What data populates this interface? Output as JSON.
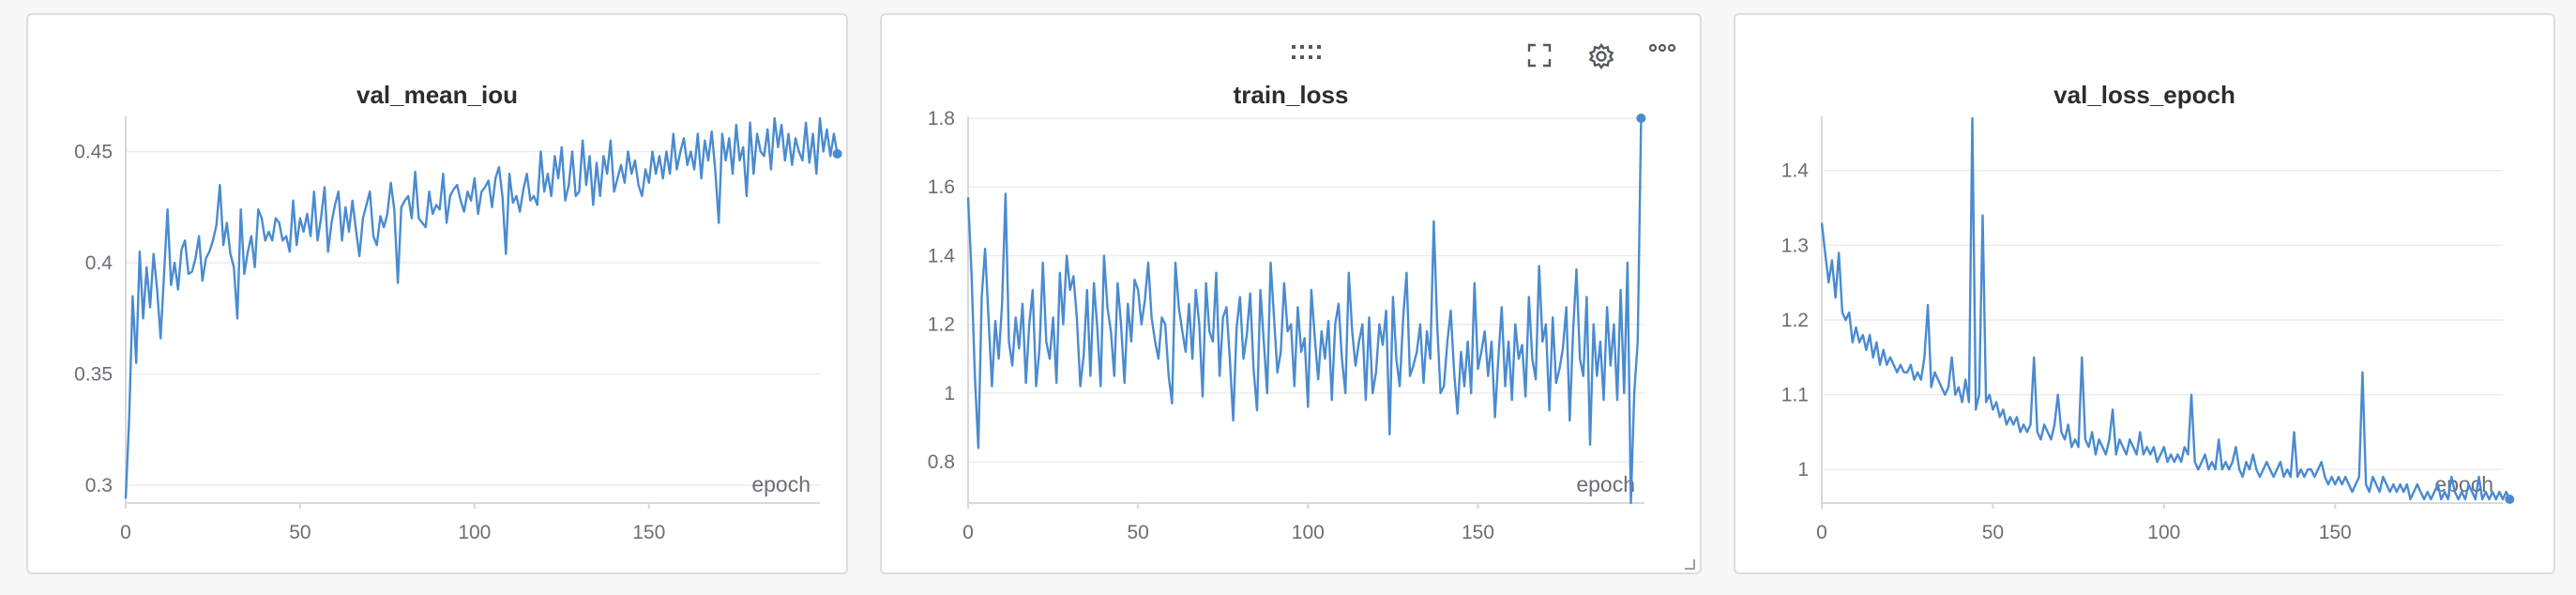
{
  "panels": [
    {
      "title": "val_mean_iou",
      "toolbar": false
    },
    {
      "title": "train_loss",
      "toolbar": true
    },
    {
      "title": "val_loss_epoch",
      "toolbar": false
    }
  ],
  "toolbar_icons": [
    "drag-handle-icon",
    "fullscreen-icon",
    "gear-icon",
    "more-icon"
  ],
  "colors": {
    "line": "#4a8bd0",
    "grid": "#ececee",
    "axis": "#d8d9dc"
  },
  "chart_data": [
    {
      "type": "line",
      "title": "val_mean_iou",
      "xlabel": "epoch",
      "ylabel": "",
      "xlim": [
        0,
        199
      ],
      "ylim": [
        0.292,
        0.465
      ],
      "xticks": [
        0,
        50,
        100,
        150
      ],
      "yticks": [
        0.3,
        0.35,
        0.4,
        0.45
      ],
      "ytick_labels": [
        "0.3",
        "0.35",
        "0.4",
        "0.45"
      ],
      "grid": true,
      "series": [
        {
          "values": [
            0.294,
            0.33,
            0.385,
            0.355,
            0.405,
            0.375,
            0.398,
            0.38,
            0.404,
            0.388,
            0.366,
            0.395,
            0.424,
            0.39,
            0.4,
            0.388,
            0.406,
            0.41,
            0.395,
            0.396,
            0.402,
            0.412,
            0.392,
            0.402,
            0.405,
            0.41,
            0.417,
            0.435,
            0.408,
            0.418,
            0.404,
            0.398,
            0.375,
            0.424,
            0.395,
            0.405,
            0.412,
            0.398,
            0.424,
            0.42,
            0.41,
            0.414,
            0.41,
            0.42,
            0.418,
            0.41,
            0.412,
            0.405,
            0.428,
            0.408,
            0.42,
            0.414,
            0.422,
            0.412,
            0.432,
            0.41,
            0.42,
            0.434,
            0.405,
            0.418,
            0.426,
            0.432,
            0.41,
            0.425,
            0.414,
            0.428,
            0.415,
            0.403,
            0.42,
            0.426,
            0.432,
            0.412,
            0.408,
            0.421,
            0.416,
            0.422,
            0.436,
            0.424,
            0.391,
            0.425,
            0.428,
            0.43,
            0.42,
            0.441,
            0.42,
            0.418,
            0.416,
            0.432,
            0.422,
            0.426,
            0.424,
            0.44,
            0.418,
            0.43,
            0.433,
            0.435,
            0.428,
            0.423,
            0.432,
            0.428,
            0.438,
            0.422,
            0.432,
            0.434,
            0.437,
            0.425,
            0.438,
            0.443,
            0.43,
            0.404,
            0.44,
            0.427,
            0.43,
            0.423,
            0.433,
            0.44,
            0.428,
            0.43,
            0.426,
            0.45,
            0.432,
            0.44,
            0.43,
            0.448,
            0.438,
            0.452,
            0.428,
            0.435,
            0.45,
            0.43,
            0.432,
            0.455,
            0.435,
            0.448,
            0.426,
            0.445,
            0.43,
            0.448,
            0.44,
            0.455,
            0.432,
            0.438,
            0.444,
            0.436,
            0.45,
            0.44,
            0.446,
            0.435,
            0.43,
            0.442,
            0.436,
            0.45,
            0.44,
            0.448,
            0.438,
            0.45,
            0.44,
            0.458,
            0.442,
            0.45,
            0.456,
            0.444,
            0.45,
            0.442,
            0.458,
            0.438,
            0.455,
            0.446,
            0.459,
            0.442,
            0.418,
            0.458,
            0.446,
            0.456,
            0.44,
            0.462,
            0.446,
            0.452,
            0.43,
            0.463,
            0.44,
            0.458,
            0.45,
            0.448,
            0.46,
            0.442,
            0.465,
            0.452,
            0.462,
            0.446,
            0.458,
            0.444,
            0.456,
            0.45,
            0.446,
            0.463,
            0.445,
            0.458,
            0.44,
            0.465,
            0.45,
            0.46,
            0.448,
            0.458,
            0.449
          ]
        }
      ]
    },
    {
      "type": "line",
      "title": "train_loss",
      "xlabel": "epoch",
      "ylabel": "",
      "xlim": [
        0,
        199
      ],
      "ylim": [
        0.68,
        1.8
      ],
      "xticks": [
        0,
        50,
        100,
        150
      ],
      "yticks": [
        0.8,
        1,
        1.2,
        1.4,
        1.6,
        1.8
      ],
      "ytick_labels": [
        "0.8",
        "1",
        "1.2",
        "1.4",
        "1.6",
        "1.8"
      ],
      "grid": true,
      "series": [
        {
          "values": [
            1.57,
            1.35,
            1.05,
            0.84,
            1.28,
            1.42,
            1.22,
            1.02,
            1.21,
            1.1,
            1.26,
            1.58,
            1.15,
            1.08,
            1.22,
            1.13,
            1.26,
            1.03,
            1.2,
            1.3,
            1.02,
            1.13,
            1.38,
            1.15,
            1.1,
            1.22,
            1.03,
            1.35,
            1.2,
            1.4,
            1.3,
            1.34,
            1.22,
            1.02,
            1.11,
            1.3,
            1.05,
            1.32,
            1.19,
            1.02,
            1.4,
            1.25,
            1.18,
            1.05,
            1.32,
            1.2,
            1.03,
            1.26,
            1.15,
            1.33,
            1.3,
            1.2,
            1.27,
            1.38,
            1.22,
            1.15,
            1.1,
            1.22,
            1.2,
            1.05,
            0.97,
            1.38,
            1.25,
            1.18,
            1.12,
            1.26,
            1.1,
            1.3,
            1.2,
            0.99,
            1.32,
            1.18,
            1.15,
            1.35,
            1.05,
            1.22,
            1.25,
            1.1,
            0.92,
            1.19,
            1.28,
            1.1,
            1.17,
            1.29,
            1.07,
            0.95,
            1.3,
            1.15,
            1.0,
            1.38,
            1.22,
            1.06,
            1.12,
            1.32,
            1.18,
            1.2,
            1.02,
            1.25,
            1.12,
            1.16,
            0.96,
            1.3,
            1.16,
            1.04,
            1.18,
            1.1,
            1.21,
            0.98,
            1.2,
            1.26,
            1.1,
            1.0,
            1.35,
            1.18,
            1.08,
            1.15,
            1.2,
            0.98,
            1.22,
            1.0,
            1.06,
            1.2,
            1.14,
            1.24,
            0.88,
            1.28,
            1.1,
            1.02,
            1.22,
            1.35,
            1.05,
            1.08,
            1.12,
            1.2,
            1.03,
            1.18,
            1.1,
            1.5,
            1.2,
            1.0,
            1.02,
            1.15,
            1.24,
            1.06,
            0.94,
            1.12,
            1.02,
            1.15,
            1.0,
            1.32,
            1.07,
            1.12,
            1.18,
            1.05,
            1.15,
            0.93,
            1.1,
            1.25,
            1.02,
            1.15,
            0.98,
            1.2,
            1.1,
            1.14,
            0.99,
            1.28,
            1.1,
            1.04,
            1.37,
            1.15,
            1.2,
            0.95,
            1.22,
            1.03,
            1.07,
            1.13,
            1.25,
            0.92,
            1.18,
            1.36,
            1.1,
            1.05,
            1.28,
            0.85,
            1.2,
            1.05,
            1.15,
            0.98,
            1.25,
            1.08,
            1.2,
            0.98,
            1.3,
            1.0,
            1.38,
            0.68,
            1.0,
            1.15,
            1.8
          ]
        }
      ]
    },
    {
      "type": "line",
      "title": "val_loss_epoch",
      "xlabel": "epoch",
      "ylabel": "",
      "xlim": [
        0,
        199
      ],
      "ylim": [
        0.955,
        1.47
      ],
      "xticks": [
        0,
        50,
        100,
        150
      ],
      "yticks": [
        1,
        1.1,
        1.2,
        1.3,
        1.4
      ],
      "ytick_labels": [
        "1",
        "1.1",
        "1.2",
        "1.3",
        "1.4"
      ],
      "grid": true,
      "series": [
        {
          "values": [
            1.33,
            1.29,
            1.25,
            1.28,
            1.23,
            1.29,
            1.21,
            1.2,
            1.21,
            1.17,
            1.19,
            1.17,
            1.18,
            1.16,
            1.18,
            1.15,
            1.17,
            1.14,
            1.16,
            1.14,
            1.15,
            1.14,
            1.13,
            1.14,
            1.13,
            1.13,
            1.14,
            1.12,
            1.13,
            1.12,
            1.15,
            1.22,
            1.11,
            1.13,
            1.12,
            1.11,
            1.1,
            1.11,
            1.15,
            1.1,
            1.11,
            1.09,
            1.12,
            1.09,
            1.47,
            1.08,
            1.1,
            1.34,
            1.09,
            1.1,
            1.08,
            1.09,
            1.07,
            1.08,
            1.06,
            1.07,
            1.06,
            1.07,
            1.05,
            1.06,
            1.05,
            1.06,
            1.15,
            1.05,
            1.04,
            1.06,
            1.05,
            1.04,
            1.06,
            1.1,
            1.05,
            1.04,
            1.06,
            1.03,
            1.04,
            1.03,
            1.15,
            1.04,
            1.03,
            1.05,
            1.02,
            1.04,
            1.03,
            1.02,
            1.04,
            1.08,
            1.02,
            1.04,
            1.03,
            1.02,
            1.04,
            1.03,
            1.02,
            1.05,
            1.02,
            1.03,
            1.02,
            1.03,
            1.01,
            1.02,
            1.03,
            1.01,
            1.02,
            1.01,
            1.02,
            1.01,
            1.03,
            1.02,
            1.1,
            1.01,
            1.0,
            1.01,
            1.02,
            1.0,
            1.01,
            1.0,
            1.04,
            1.0,
            1.01,
            1.0,
            1.01,
            1.03,
            1.0,
            0.99,
            1.01,
            1.0,
            1.02,
            1.0,
            0.99,
            1.0,
            1.01,
            1.0,
            0.99,
            1.0,
            1.01,
            0.99,
            1.0,
            0.99,
            1.05,
            0.99,
            1.0,
            0.99,
            1.0,
            1.0,
            0.99,
            1.0,
            1.01,
            0.99,
            0.98,
            0.99,
            0.98,
            0.99,
            0.98,
            0.99,
            0.98,
            0.97,
            0.98,
            0.99,
            1.13,
            0.98,
            0.97,
            0.99,
            0.98,
            0.97,
            0.99,
            0.98,
            0.97,
            0.98,
            0.97,
            0.98,
            0.97,
            0.98,
            0.96,
            0.97,
            0.98,
            0.97,
            0.96,
            0.97,
            0.96,
            0.97,
            0.98,
            0.96,
            0.97,
            0.96,
            0.99,
            0.97,
            0.96,
            0.97,
            0.96,
            0.98,
            0.97,
            0.96,
            0.99,
            0.96,
            0.97,
            0.96,
            0.97,
            0.96,
            0.97,
            0.96,
            0.97,
            0.96
          ]
        }
      ]
    }
  ]
}
